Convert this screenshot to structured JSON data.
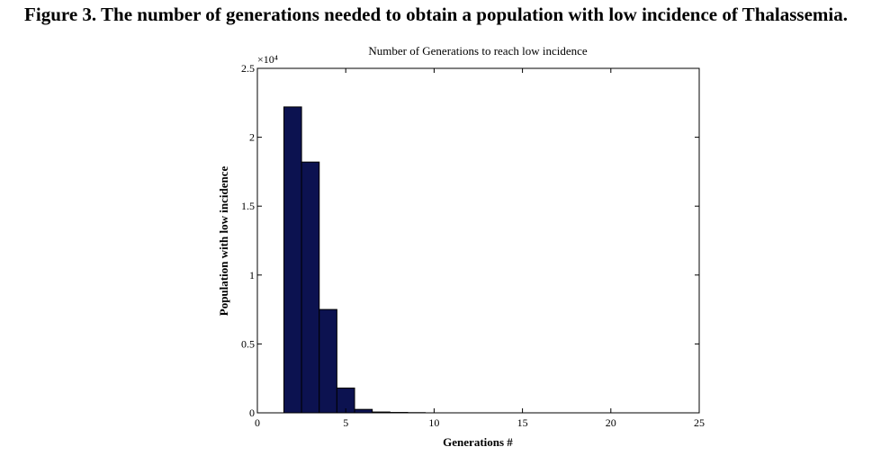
{
  "figure": {
    "caption": "Figure 3. The number of generations needed to obtain a population with low incidence of Thalassemia."
  },
  "chart_data": {
    "type": "bar",
    "title": "Number of Generations to reach low incidence",
    "xlabel": "Generations #",
    "ylabel": "Population with low incidence",
    "xlim": [
      0,
      25
    ],
    "ylim": [
      0,
      25000
    ],
    "xticks": [
      0,
      5,
      10,
      15,
      20,
      25
    ],
    "yticks": [
      0,
      5000,
      10000,
      15000,
      20000,
      25000
    ],
    "xtick_labels": [
      "0",
      "5",
      "10",
      "15",
      "20",
      "25"
    ],
    "ytick_labels": [
      "0",
      "0.5",
      "1",
      "1.5",
      "2",
      "2.5"
    ],
    "y_exponent_label": "×10⁴",
    "bin_width": 1,
    "bar_color": "#0c1250",
    "grid": false,
    "legend": "none",
    "bins": [
      {
        "x": 2,
        "value": 22200
      },
      {
        "x": 3,
        "value": 18200
      },
      {
        "x": 4,
        "value": 7500
      },
      {
        "x": 5,
        "value": 1800
      },
      {
        "x": 6,
        "value": 250
      },
      {
        "x": 7,
        "value": 60
      },
      {
        "x": 8,
        "value": 30
      },
      {
        "x": 9,
        "value": 15
      }
    ]
  }
}
